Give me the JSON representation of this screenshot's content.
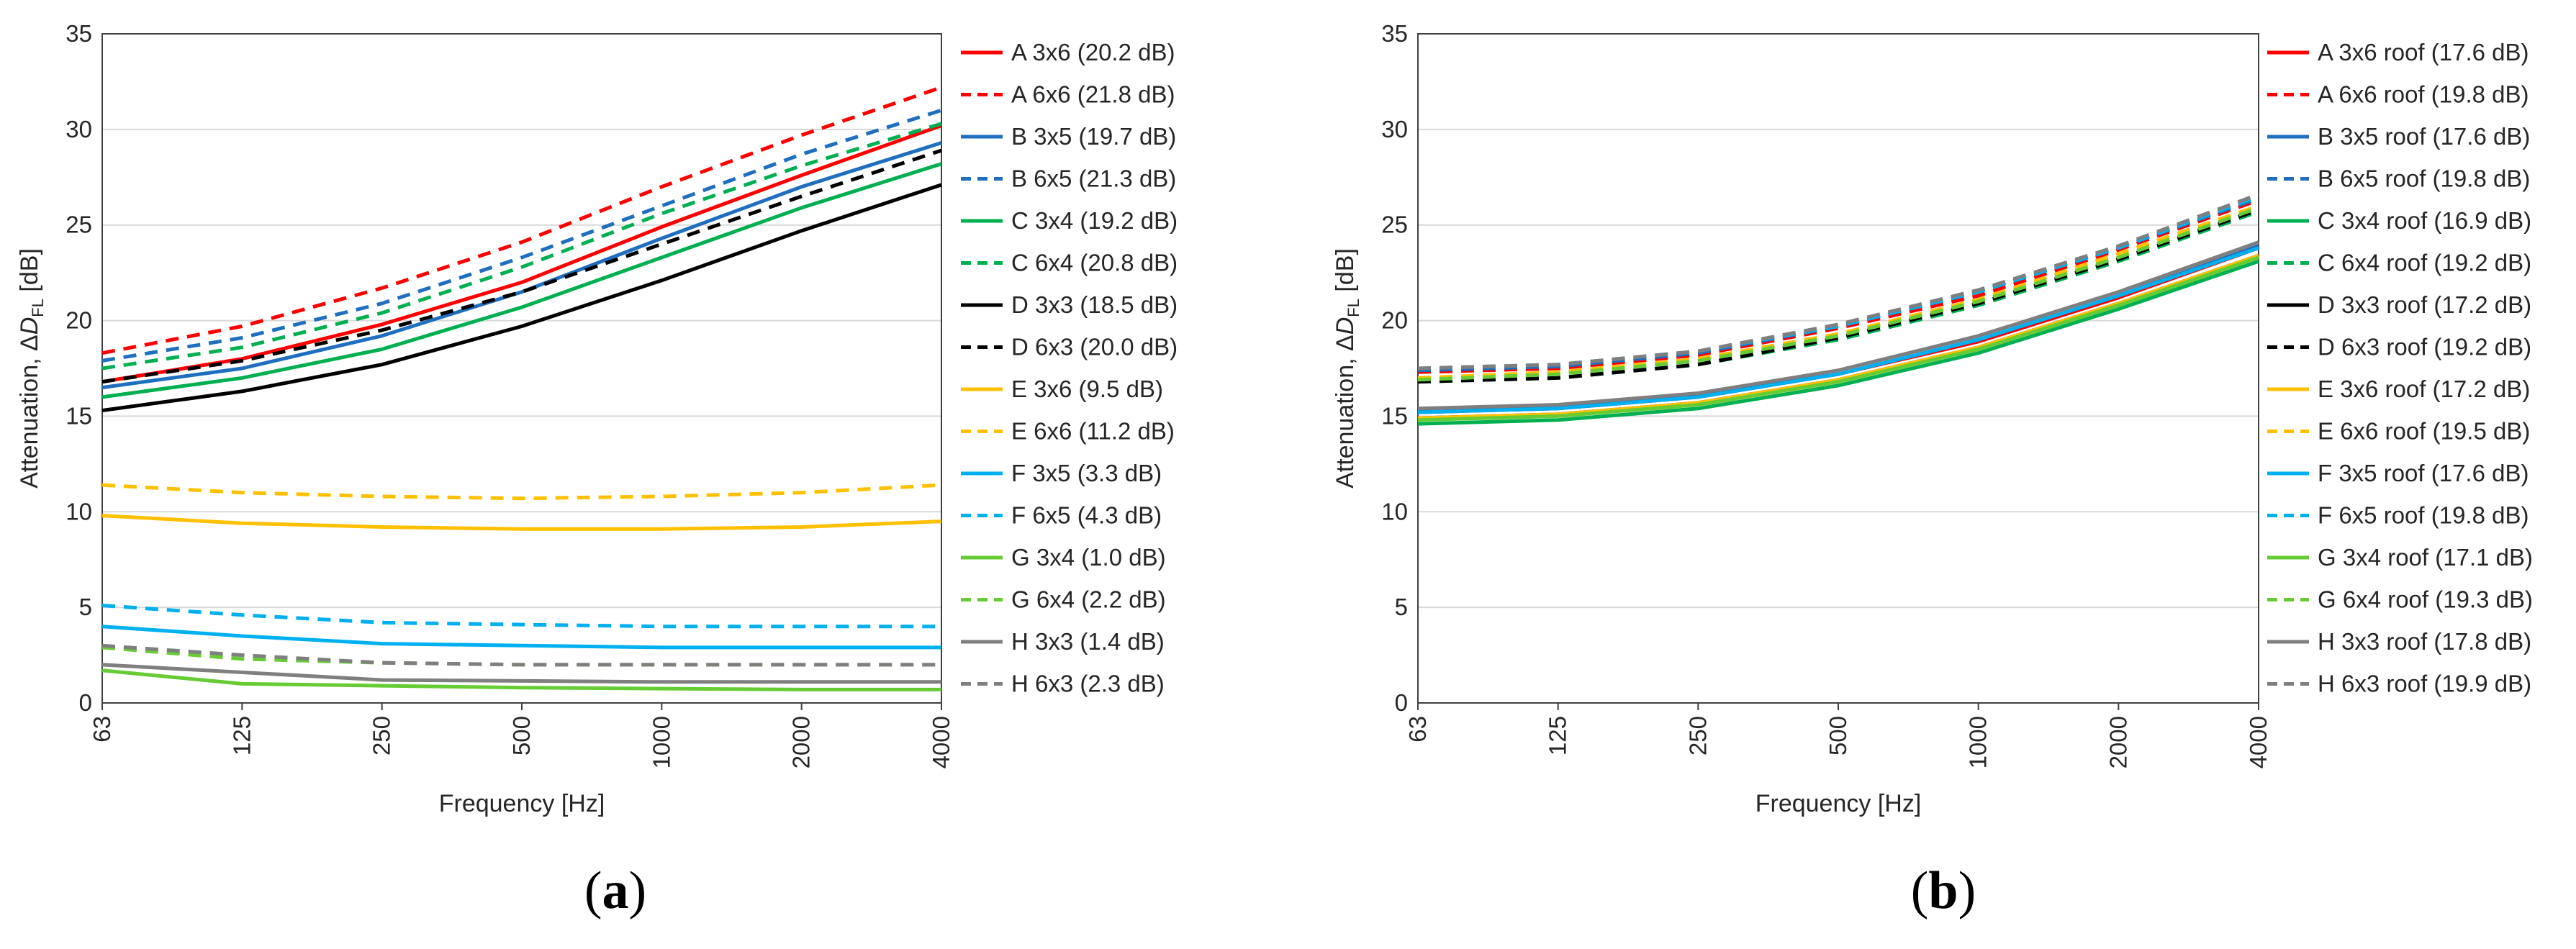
{
  "chart_data": [
    {
      "type": "line",
      "panel": "a",
      "caption": "(a)",
      "xlabel": "Frequency [Hz]",
      "ylabel_main": "Attenuation, Δ",
      "ylabel_sym": "D",
      "ylabel_sub": "FL",
      "ylabel_unit": " [dB]",
      "categories": [
        "63",
        "125",
        "250",
        "500",
        "1000",
        "2000",
        "4000"
      ],
      "ylim": [
        0,
        35
      ],
      "yticks": [
        "0",
        "5",
        "10",
        "15",
        "20",
        "25",
        "30",
        "35"
      ],
      "grid": true,
      "legend_position": "right",
      "series": [
        {
          "name": "A 3x6 (20.2 dB)",
          "color": "#ff0000",
          "dash": "solid",
          "values": [
            16.8,
            18.0,
            19.8,
            22.0,
            24.9,
            27.6,
            30.2
          ]
        },
        {
          "name": "A 6x6 (21.8 dB)",
          "color": "#ff0000",
          "dash": "dashed",
          "values": [
            18.3,
            19.7,
            21.7,
            24.1,
            27.0,
            29.7,
            32.2
          ]
        },
        {
          "name": "B 3x5 (19.7 dB)",
          "color": "#1f6fc0",
          "dash": "solid",
          "values": [
            16.5,
            17.5,
            19.2,
            21.5,
            24.3,
            27.0,
            29.3
          ]
        },
        {
          "name": "B 6x5 (21.3 dB)",
          "color": "#1f6fc0",
          "dash": "dashed",
          "values": [
            17.9,
            19.1,
            20.9,
            23.3,
            26.0,
            28.7,
            31.0
          ]
        },
        {
          "name": "C 3x4  (19.2 dB)",
          "color": "#00b050",
          "dash": "solid",
          "values": [
            16.0,
            17.0,
            18.5,
            20.7,
            23.3,
            25.9,
            28.2
          ]
        },
        {
          "name": "C 6x4 (20.8 dB)",
          "color": "#00b050",
          "dash": "dashed",
          "values": [
            17.5,
            18.6,
            20.4,
            22.8,
            25.6,
            28.1,
            30.3
          ]
        },
        {
          "name": "D 3x3 (18.5 dB)",
          "color": "#000000",
          "dash": "solid",
          "values": [
            15.3,
            16.3,
            17.7,
            19.7,
            22.1,
            24.7,
            27.1
          ]
        },
        {
          "name": "D 6x3 (20.0 dB)",
          "color": "#000000",
          "dash": "dashed",
          "values": [
            16.8,
            17.9,
            19.5,
            21.5,
            24.0,
            26.5,
            28.9
          ]
        },
        {
          "name": "E 3x6 (9.5 dB)",
          "color": "#ffc000",
          "dash": "solid",
          "values": [
            9.8,
            9.4,
            9.2,
            9.1,
            9.1,
            9.2,
            9.5
          ]
        },
        {
          "name": "E 6x6 (11.2 dB)",
          "color": "#ffc000",
          "dash": "dashed",
          "values": [
            11.4,
            11.0,
            10.8,
            10.7,
            10.8,
            11.0,
            11.4
          ]
        },
        {
          "name": "F 3x5 (3.3 dB)",
          "color": "#00b0f0",
          "dash": "solid",
          "values": [
            4.0,
            3.5,
            3.1,
            3.0,
            2.9,
            2.9,
            2.9
          ]
        },
        {
          "name": "F 6x5 (4.3 dB)",
          "color": "#00b0f0",
          "dash": "dashed",
          "values": [
            5.1,
            4.6,
            4.2,
            4.1,
            4.0,
            4.0,
            4.0
          ]
        },
        {
          "name": "G 3x4 (1.0 dB)",
          "color": "#66cc33",
          "dash": "solid",
          "values": [
            1.7,
            1.0,
            0.9,
            0.8,
            0.75,
            0.7,
            0.7
          ]
        },
        {
          "name": "G 6x4 (2.2 dB)",
          "color": "#66cc33",
          "dash": "dashed",
          "values": [
            2.9,
            2.3,
            2.1,
            2.0,
            2.0,
            2.0,
            2.0
          ]
        },
        {
          "name": "H 3x3 (1.4 dB)",
          "color": "#7f7f7f",
          "dash": "solid",
          "values": [
            2.0,
            1.6,
            1.2,
            1.15,
            1.1,
            1.1,
            1.1
          ]
        },
        {
          "name": "H 6x3 (2.3 dB)",
          "color": "#7f7f7f",
          "dash": "dashed",
          "values": [
            3.0,
            2.5,
            2.1,
            2.0,
            2.0,
            2.0,
            2.0
          ]
        }
      ]
    },
    {
      "type": "line",
      "panel": "b",
      "caption": "(b)",
      "xlabel": "Frequency [Hz]",
      "ylabel_main": "Attenuation, Δ",
      "ylabel_sym": "D",
      "ylabel_sub": "FL",
      "ylabel_unit": " [dB]",
      "categories": [
        "63",
        "125",
        "250",
        "500",
        "1000",
        "2000",
        "4000"
      ],
      "ylim": [
        0,
        35
      ],
      "yticks": [
        "0",
        "5",
        "10",
        "15",
        "20",
        "25",
        "30",
        "35"
      ],
      "grid": true,
      "legend_position": "right",
      "series": [
        {
          "name": "A 3x6 roof (17.6 dB)",
          "color": "#ff0000",
          "dash": "solid",
          "values": [
            15.2,
            15.4,
            16.0,
            17.2,
            18.9,
            21.2,
            23.8
          ]
        },
        {
          "name": "A 6x6 roof (19.8 dB)",
          "color": "#ff0000",
          "dash": "dashed",
          "values": [
            17.3,
            17.5,
            18.2,
            19.6,
            21.3,
            23.7,
            26.3
          ]
        },
        {
          "name": "B 3x5 roof (17.6 dB)",
          "color": "#1f6fc0",
          "dash": "solid",
          "values": [
            15.3,
            15.5,
            16.1,
            17.2,
            19.0,
            21.3,
            23.9
          ]
        },
        {
          "name": "B 6x5 roof (19.8 dB)",
          "color": "#1f6fc0",
          "dash": "dashed",
          "values": [
            17.4,
            17.6,
            18.3,
            19.7,
            21.5,
            23.8,
            26.4
          ]
        },
        {
          "name": "C 3x4 roof (16.9 dB)",
          "color": "#00b050",
          "dash": "solid",
          "values": [
            14.6,
            14.8,
            15.4,
            16.6,
            18.3,
            20.6,
            23.1
          ]
        },
        {
          "name": "C 6x4 roof (19.2 dB)",
          "color": "#00b050",
          "dash": "dashed",
          "values": [
            16.8,
            17.0,
            17.7,
            19.0,
            20.8,
            23.1,
            25.7
          ]
        },
        {
          "name": "D 3x3 roof (17.2 dB)",
          "color": "#000000",
          "dash": "solid",
          "values": [
            14.9,
            15.1,
            15.7,
            16.9,
            18.6,
            20.9,
            23.4
          ]
        },
        {
          "name": "D 6x3 roof (19.2 dB)",
          "color": "#000000",
          "dash": "dashed",
          "values": [
            16.8,
            17.0,
            17.7,
            19.1,
            20.9,
            23.2,
            25.8
          ]
        },
        {
          "name": "E 3x6 roof (17.2 dB)",
          "color": "#ffc000",
          "dash": "solid",
          "values": [
            14.9,
            15.1,
            15.7,
            16.9,
            18.6,
            20.9,
            23.4
          ]
        },
        {
          "name": "E 6x6 roof (19.5 dB)",
          "color": "#ffc000",
          "dash": "dashed",
          "values": [
            17.0,
            17.3,
            18.0,
            19.3,
            21.1,
            23.5,
            26.0
          ]
        },
        {
          "name": "F 3x5 roof (17.6 dB)",
          "color": "#00b0f0",
          "dash": "solid",
          "values": [
            15.2,
            15.4,
            16.0,
            17.2,
            19.0,
            21.3,
            23.8
          ]
        },
        {
          "name": "F 6x5 roof (19.8 dB)",
          "color": "#00b0f0",
          "dash": "dashed",
          "values": [
            17.5,
            17.7,
            18.4,
            19.7,
            21.5,
            23.8,
            26.5
          ]
        },
        {
          "name": "G 3x4 roof (17.1 dB)",
          "color": "#66cc33",
          "dash": "solid",
          "values": [
            14.8,
            15.0,
            15.6,
            16.8,
            18.5,
            20.8,
            23.3
          ]
        },
        {
          "name": "G 6x4 roof (19.3 dB)",
          "color": "#66cc33",
          "dash": "dashed",
          "values": [
            16.9,
            17.2,
            17.9,
            19.2,
            21.0,
            23.3,
            25.9
          ]
        },
        {
          "name": "H 3x3 roof (17.8 dB)",
          "color": "#7f7f7f",
          "dash": "solid",
          "values": [
            15.4,
            15.6,
            16.2,
            17.4,
            19.2,
            21.5,
            24.1
          ]
        },
        {
          "name": "H 6x3 roof (19.9 dB)",
          "color": "#7f7f7f",
          "dash": "dashed",
          "values": [
            17.5,
            17.7,
            18.4,
            19.8,
            21.6,
            23.9,
            26.6
          ]
        }
      ]
    }
  ]
}
